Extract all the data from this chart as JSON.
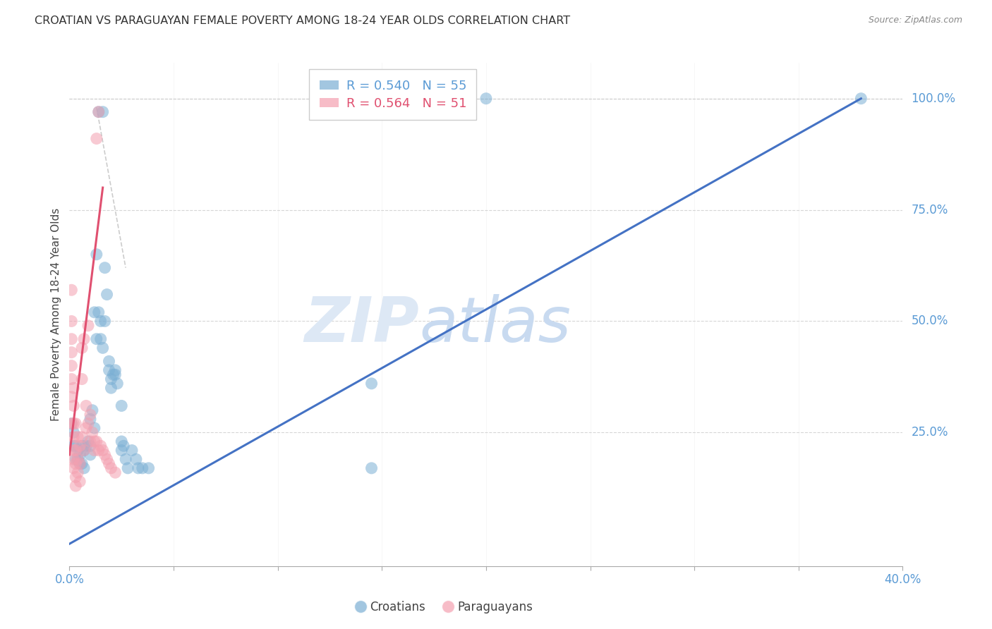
{
  "title": "CROATIAN VS PARAGUAYAN FEMALE POVERTY AMONG 18-24 YEAR OLDS CORRELATION CHART",
  "source": "Source: ZipAtlas.com",
  "ylabel": "Female Poverty Among 18-24 Year Olds",
  "xlim": [
    0.0,
    0.4
  ],
  "ylim": [
    -0.05,
    1.08
  ],
  "xticks": [
    0.0,
    0.05,
    0.1,
    0.15,
    0.2,
    0.25,
    0.3,
    0.35,
    0.4
  ],
  "xticklabels": [
    "0.0%",
    "",
    "",
    "",
    "",
    "",
    "",
    "",
    "40.0%"
  ],
  "yticks_right": [
    0.25,
    0.5,
    0.75,
    1.0
  ],
  "yticklabels_right": [
    "25.0%",
    "50.0%",
    "75.0%",
    "100.0%"
  ],
  "grid_color": "#cccccc",
  "background_color": "#ffffff",
  "croatian_color": "#7bafd4",
  "paraguayan_color": "#f4a0b0",
  "axis_color": "#5b9bd5",
  "croatian_line_color": "#4472c4",
  "paraguayan_line_color": "#e05070",
  "dash_line_color": "#c0c0c0",
  "legend_label_croatian": "R = 0.540   N = 55",
  "legend_label_paraguayan": "R = 0.564   N = 51",
  "watermark_zip": "ZIP",
  "watermark_atlas": "atlas",
  "croatian_line_x": [
    0.0,
    0.38
  ],
  "croatian_line_y": [
    0.0,
    1.0
  ],
  "paraguayan_line_x": [
    0.0,
    0.016
  ],
  "paraguayan_line_y": [
    0.2,
    0.8
  ],
  "dash_line_x": [
    0.013,
    0.027
  ],
  "dash_line_y": [
    0.98,
    0.62
  ],
  "croatian_points": [
    [
      0.001,
      0.27
    ],
    [
      0.002,
      0.25
    ],
    [
      0.002,
      0.22
    ],
    [
      0.003,
      0.22
    ],
    [
      0.003,
      0.19
    ],
    [
      0.004,
      0.21
    ],
    [
      0.004,
      0.19
    ],
    [
      0.005,
      0.2
    ],
    [
      0.005,
      0.18
    ],
    [
      0.006,
      0.22
    ],
    [
      0.006,
      0.18
    ],
    [
      0.007,
      0.21
    ],
    [
      0.007,
      0.17
    ],
    [
      0.008,
      0.22
    ],
    [
      0.009,
      0.23
    ],
    [
      0.01,
      0.28
    ],
    [
      0.01,
      0.22
    ],
    [
      0.01,
      0.2
    ],
    [
      0.011,
      0.3
    ],
    [
      0.012,
      0.26
    ],
    [
      0.012,
      0.52
    ],
    [
      0.013,
      0.46
    ],
    [
      0.013,
      0.65
    ],
    [
      0.014,
      0.52
    ],
    [
      0.014,
      0.97
    ],
    [
      0.015,
      0.5
    ],
    [
      0.015,
      0.46
    ],
    [
      0.016,
      0.44
    ],
    [
      0.016,
      0.97
    ],
    [
      0.017,
      0.62
    ],
    [
      0.017,
      0.5
    ],
    [
      0.018,
      0.56
    ],
    [
      0.019,
      0.41
    ],
    [
      0.019,
      0.39
    ],
    [
      0.02,
      0.37
    ],
    [
      0.02,
      0.35
    ],
    [
      0.021,
      0.38
    ],
    [
      0.022,
      0.39
    ],
    [
      0.022,
      0.38
    ],
    [
      0.023,
      0.36
    ],
    [
      0.025,
      0.31
    ],
    [
      0.025,
      0.23
    ],
    [
      0.025,
      0.21
    ],
    [
      0.026,
      0.22
    ],
    [
      0.027,
      0.19
    ],
    [
      0.028,
      0.17
    ],
    [
      0.03,
      0.21
    ],
    [
      0.032,
      0.19
    ],
    [
      0.033,
      0.17
    ],
    [
      0.035,
      0.17
    ],
    [
      0.038,
      0.17
    ],
    [
      0.145,
      0.36
    ],
    [
      0.145,
      0.17
    ],
    [
      0.2,
      1.0
    ],
    [
      0.38,
      1.0
    ]
  ],
  "paraguayan_points": [
    [
      0.001,
      0.57
    ],
    [
      0.001,
      0.5
    ],
    [
      0.001,
      0.46
    ],
    [
      0.001,
      0.43
    ],
    [
      0.001,
      0.4
    ],
    [
      0.001,
      0.37
    ],
    [
      0.001,
      0.33
    ],
    [
      0.001,
      0.27
    ],
    [
      0.002,
      0.35
    ],
    [
      0.002,
      0.31
    ],
    [
      0.002,
      0.27
    ],
    [
      0.002,
      0.24
    ],
    [
      0.002,
      0.21
    ],
    [
      0.002,
      0.19
    ],
    [
      0.002,
      0.17
    ],
    [
      0.003,
      0.27
    ],
    [
      0.003,
      0.21
    ],
    [
      0.003,
      0.18
    ],
    [
      0.003,
      0.15
    ],
    [
      0.003,
      0.13
    ],
    [
      0.004,
      0.24
    ],
    [
      0.004,
      0.19
    ],
    [
      0.004,
      0.16
    ],
    [
      0.005,
      0.22
    ],
    [
      0.005,
      0.18
    ],
    [
      0.005,
      0.14
    ],
    [
      0.006,
      0.44
    ],
    [
      0.006,
      0.37
    ],
    [
      0.006,
      0.24
    ],
    [
      0.007,
      0.46
    ],
    [
      0.007,
      0.21
    ],
    [
      0.008,
      0.31
    ],
    [
      0.008,
      0.26
    ],
    [
      0.009,
      0.49
    ],
    [
      0.009,
      0.27
    ],
    [
      0.01,
      0.29
    ],
    [
      0.01,
      0.23
    ],
    [
      0.011,
      0.25
    ],
    [
      0.012,
      0.23
    ],
    [
      0.012,
      0.21
    ],
    [
      0.013,
      0.91
    ],
    [
      0.013,
      0.23
    ],
    [
      0.014,
      0.97
    ],
    [
      0.014,
      0.21
    ],
    [
      0.015,
      0.22
    ],
    [
      0.016,
      0.21
    ],
    [
      0.017,
      0.2
    ],
    [
      0.018,
      0.19
    ],
    [
      0.019,
      0.18
    ],
    [
      0.02,
      0.17
    ],
    [
      0.022,
      0.16
    ]
  ]
}
